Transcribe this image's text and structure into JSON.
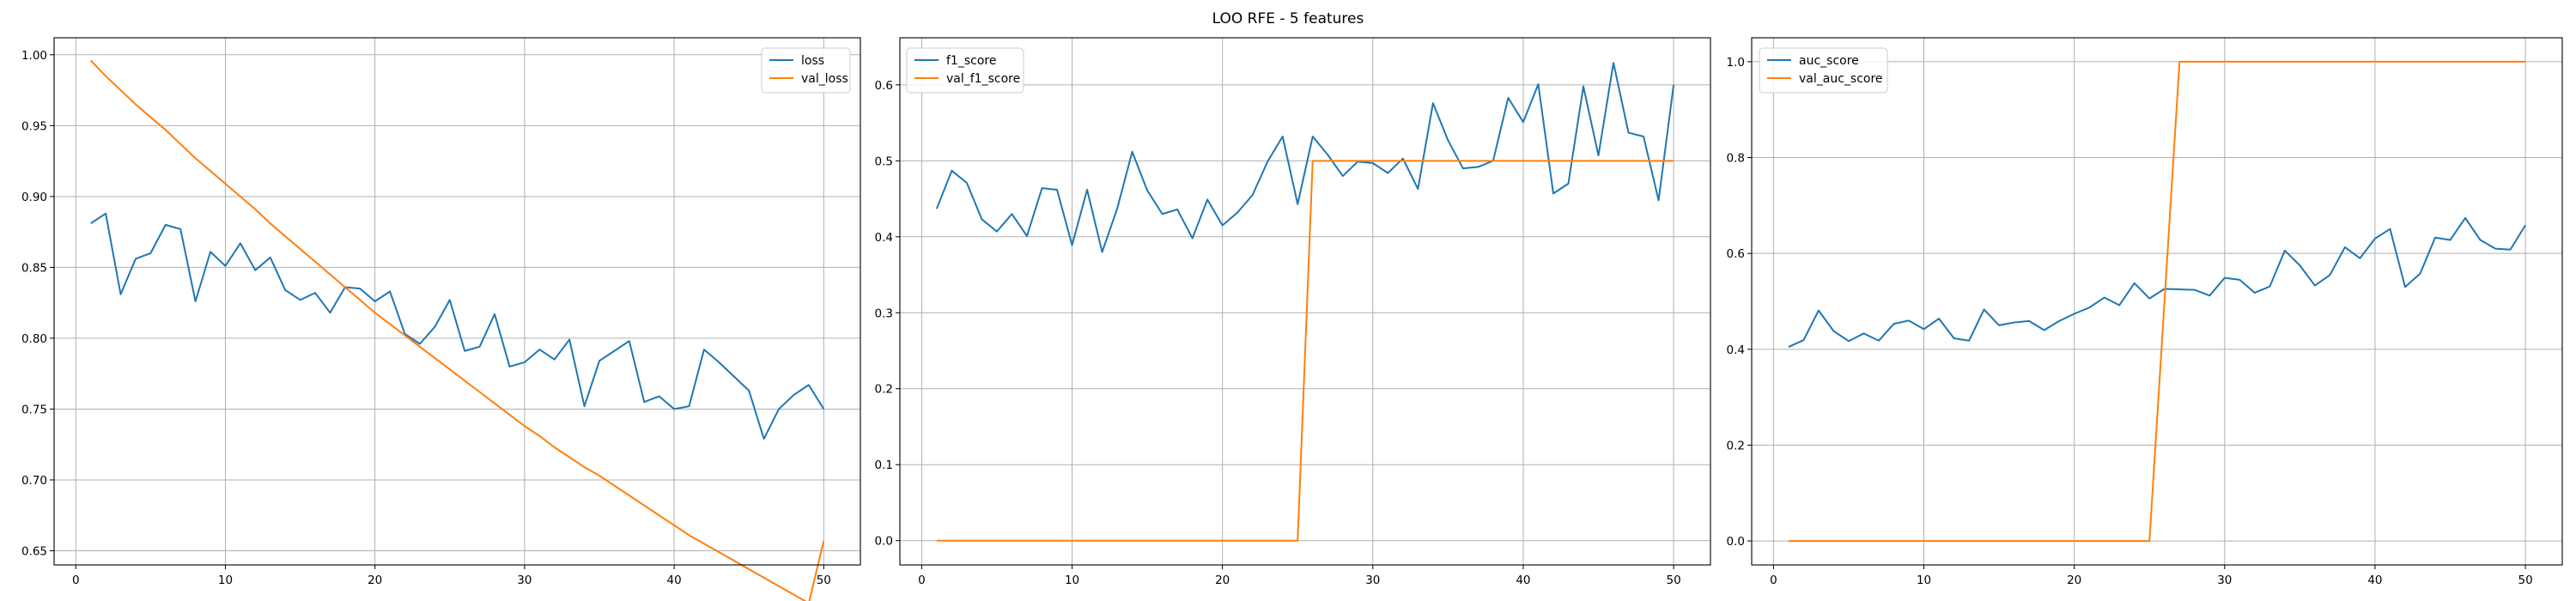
{
  "figure": {
    "suptitle": "LOO RFE - 5 features"
  },
  "colors": {
    "series_1": "#1f77b4",
    "series_2": "#ff7f0e",
    "grid": "#b0b0b0",
    "axes": "#000000"
  },
  "chart_data": [
    {
      "type": "line",
      "title": "",
      "xlabel": "",
      "ylabel": "",
      "x": [
        1,
        2,
        3,
        4,
        5,
        6,
        7,
        8,
        9,
        10,
        11,
        12,
        13,
        14,
        15,
        16,
        17,
        18,
        19,
        20,
        21,
        22,
        23,
        24,
        25,
        26,
        27,
        28,
        29,
        30,
        31,
        32,
        33,
        34,
        35,
        36,
        37,
        38,
        39,
        40,
        41,
        42,
        43,
        44,
        45,
        46,
        47,
        48,
        49,
        50
      ],
      "xlim": [
        -1.45,
        52.45
      ],
      "ylim": [
        0.64,
        1.012
      ],
      "xticks": [
        0,
        10,
        20,
        30,
        40,
        50
      ],
      "xtick_labels": [
        "0",
        "10",
        "20",
        "30",
        "40",
        "50"
      ],
      "yticks": [
        0.65,
        0.7,
        0.75,
        0.8,
        0.85,
        0.9,
        0.95,
        1.0
      ],
      "ytick_labels": [
        "0.65",
        "0.70",
        "0.75",
        "0.80",
        "0.85",
        "0.90",
        "0.95",
        "1.00"
      ],
      "grid": true,
      "legend_position": "top-right",
      "series": [
        {
          "name": "loss",
          "color": "#1f77b4",
          "values": [
            0.881,
            0.888,
            0.831,
            0.856,
            0.86,
            0.88,
            0.877,
            0.826,
            0.861,
            0.851,
            0.867,
            0.848,
            0.857,
            0.834,
            0.827,
            0.832,
            0.818,
            0.836,
            0.835,
            0.826,
            0.833,
            0.803,
            0.796,
            0.808,
            0.827,
            0.791,
            0.794,
            0.817,
            0.78,
            0.783,
            0.792,
            0.785,
            0.799,
            0.752,
            0.784,
            0.791,
            0.798,
            0.755,
            0.759,
            0.75,
            0.752,
            0.792,
            0.783,
            0.773,
            0.763,
            0.729,
            0.75,
            0.76,
            0.767,
            0.75
          ]
        },
        {
          "name": "val_loss",
          "color": "#ff7f0e",
          "values": [
            0.996,
            0.985,
            0.975,
            0.965,
            0.956,
            0.947,
            0.937,
            0.927,
            0.918,
            0.909,
            0.9,
            0.891,
            0.881,
            0.872,
            0.863,
            0.854,
            0.845,
            0.836,
            0.827,
            0.818,
            0.81,
            0.802,
            0.794,
            0.786,
            0.778,
            0.77,
            0.762,
            0.754,
            0.746,
            0.738,
            0.731,
            0.723,
            0.716,
            0.709,
            0.703,
            0.696,
            0.689,
            0.682,
            0.675,
            0.668,
            0.661,
            0.655,
            0.649,
            0.643,
            0.637,
            0.631,
            0.625,
            0.619,
            0.613,
            0.657
          ]
        }
      ]
    },
    {
      "type": "line",
      "title": "",
      "xlabel": "",
      "ylabel": "",
      "x": [
        1,
        2,
        3,
        4,
        5,
        6,
        7,
        8,
        9,
        10,
        11,
        12,
        13,
        14,
        15,
        16,
        17,
        18,
        19,
        20,
        21,
        22,
        23,
        24,
        25,
        26,
        27,
        28,
        29,
        30,
        31,
        32,
        33,
        34,
        35,
        36,
        37,
        38,
        39,
        40,
        41,
        42,
        43,
        44,
        45,
        46,
        47,
        48,
        49,
        50
      ],
      "xlim": [
        -1.45,
        52.45
      ],
      "ylim": [
        -0.032,
        0.662
      ],
      "xticks": [
        0,
        10,
        20,
        30,
        40,
        50
      ],
      "xtick_labels": [
        "0",
        "10",
        "20",
        "30",
        "40",
        "50"
      ],
      "yticks": [
        0.0,
        0.1,
        0.2,
        0.3,
        0.4,
        0.5,
        0.6
      ],
      "ytick_labels": [
        "0.0",
        "0.1",
        "0.2",
        "0.3",
        "0.4",
        "0.5",
        "0.6"
      ],
      "grid": true,
      "legend_position": "top-left",
      "series": [
        {
          "name": "f1_score",
          "color": "#1f77b4",
          "values": [
            0.437,
            0.487,
            0.471,
            0.423,
            0.407,
            0.43,
            0.401,
            0.464,
            0.462,
            0.389,
            0.462,
            0.38,
            0.437,
            0.512,
            0.461,
            0.43,
            0.436,
            0.398,
            0.449,
            0.415,
            0.432,
            0.455,
            0.499,
            0.532,
            0.443,
            0.532,
            0.508,
            0.48,
            0.499,
            0.497,
            0.484,
            0.503,
            0.463,
            0.576,
            0.527,
            0.49,
            0.492,
            0.5,
            0.583,
            0.551,
            0.601,
            0.457,
            0.47,
            0.598,
            0.507,
            0.629,
            0.537,
            0.532,
            0.448,
            0.6
          ]
        },
        {
          "name": "val_f1_score",
          "color": "#ff7f0e",
          "values": [
            0,
            0,
            0,
            0,
            0,
            0,
            0,
            0,
            0,
            0,
            0,
            0,
            0,
            0,
            0,
            0,
            0,
            0,
            0,
            0,
            0,
            0,
            0,
            0,
            0,
            0.5,
            0.5,
            0.5,
            0.5,
            0.5,
            0.5,
            0.5,
            0.5,
            0.5,
            0.5,
            0.5,
            0.5,
            0.5,
            0.5,
            0.5,
            0.5,
            0.5,
            0.5,
            0.5,
            0.5,
            0.5,
            0.5,
            0.5,
            0.5,
            0.5
          ]
        }
      ]
    },
    {
      "type": "line",
      "title": "",
      "xlabel": "",
      "ylabel": "",
      "x": [
        1,
        2,
        3,
        4,
        5,
        6,
        7,
        8,
        9,
        10,
        11,
        12,
        13,
        14,
        15,
        16,
        17,
        18,
        19,
        20,
        21,
        22,
        23,
        24,
        25,
        26,
        27,
        28,
        29,
        30,
        31,
        32,
        33,
        34,
        35,
        36,
        37,
        38,
        39,
        40,
        41,
        42,
        43,
        44,
        45,
        46,
        47,
        48,
        49,
        50
      ],
      "xlim": [
        -1.45,
        52.45
      ],
      "ylim": [
        -0.05,
        1.05
      ],
      "xticks": [
        0,
        10,
        20,
        30,
        40,
        50
      ],
      "xtick_labels": [
        "0",
        "10",
        "20",
        "30",
        "40",
        "50"
      ],
      "yticks": [
        0.0,
        0.2,
        0.4,
        0.6,
        0.8,
        1.0
      ],
      "ytick_labels": [
        "0.0",
        "0.2",
        "0.4",
        "0.6",
        "0.8",
        "1.0"
      ],
      "grid": true,
      "legend_position": "top-left",
      "series": [
        {
          "name": "auc_score",
          "color": "#1f77b4",
          "values": [
            0.405,
            0.419,
            0.481,
            0.438,
            0.417,
            0.433,
            0.418,
            0.453,
            0.46,
            0.442,
            0.464,
            0.423,
            0.418,
            0.483,
            0.45,
            0.456,
            0.459,
            0.44,
            0.459,
            0.474,
            0.487,
            0.508,
            0.492,
            0.538,
            0.506,
            0.526,
            0.525,
            0.524,
            0.512,
            0.549,
            0.545,
            0.518,
            0.531,
            0.606,
            0.575,
            0.533,
            0.555,
            0.613,
            0.59,
            0.631,
            0.651,
            0.53,
            0.558,
            0.633,
            0.628,
            0.674,
            0.628,
            0.61,
            0.608,
            0.659
          ]
        },
        {
          "name": "val_auc_score",
          "color": "#ff7f0e",
          "values": [
            0,
            0,
            0,
            0,
            0,
            0,
            0,
            0,
            0,
            0,
            0,
            0,
            0,
            0,
            0,
            0,
            0,
            0,
            0,
            0,
            0,
            0,
            0,
            0,
            0,
            0.5,
            1,
            1,
            1,
            1,
            1,
            1,
            1,
            1,
            1,
            1,
            1,
            1,
            1,
            1,
            1,
            1,
            1,
            1,
            1,
            1,
            1,
            1,
            1,
            1
          ]
        }
      ]
    }
  ]
}
